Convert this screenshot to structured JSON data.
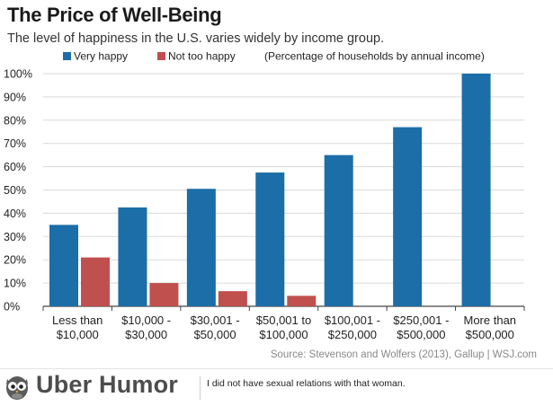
{
  "colors": {
    "very_happy": "#1b6ea7",
    "not_too_happy": "#c0504d",
    "grid": "#d9d9d9",
    "axis": "#444444"
  },
  "chart_data": {
    "type": "bar",
    "title": "The Price of Well-Being",
    "subtitle": "The level of happiness in the U.S. varies widely by income group.",
    "legend_note": "(Percentage of households by annual income)",
    "legend_position": "top",
    "categories": [
      [
        "Less than",
        "$10,000"
      ],
      [
        "$10,000 -",
        "$30,000"
      ],
      [
        "$30,001 -",
        "$50,000"
      ],
      [
        "$50,001 to",
        "$100,000"
      ],
      [
        "$100,001 -",
        "$250,000"
      ],
      [
        "$250,001 -",
        "$500,000"
      ],
      [
        "More than",
        "$500,000"
      ]
    ],
    "series": [
      {
        "name": "Very happy",
        "color": "#1b6ea7",
        "values": [
          35,
          42.5,
          50.5,
          57.5,
          65,
          77,
          100
        ]
      },
      {
        "name": "Not too happy",
        "color": "#c0504d",
        "values": [
          21,
          10,
          6.5,
          4.5,
          null,
          null,
          null
        ]
      }
    ],
    "ylim": [
      0,
      100
    ],
    "yticks": [
      "0%",
      "10%",
      "20%",
      "30%",
      "40%",
      "50%",
      "60%",
      "70%",
      "80%",
      "90%",
      "100%"
    ],
    "grid": true,
    "source": "Source: Stevenson and Wolfers (2013), Gallup  |  WSJ.com"
  },
  "footer": {
    "brand": "Uber Humor",
    "caption": "I did not have sexual relations with that woman.",
    "logo_icon": "owl-icon"
  }
}
